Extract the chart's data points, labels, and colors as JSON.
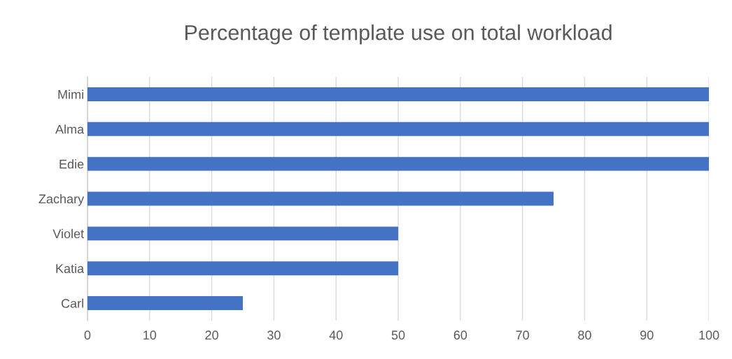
{
  "chart_data": {
    "type": "bar",
    "orientation": "horizontal",
    "title": "Percentage of template use on total workload",
    "categories": [
      "Mimi",
      "Alma",
      "Edie",
      "Zachary",
      "Violet",
      "Katia",
      "Carl"
    ],
    "values": [
      100,
      100,
      100,
      75,
      50,
      50,
      25
    ],
    "color": "#4472c4",
    "xlim": [
      0,
      100
    ],
    "xticks": [
      0,
      10,
      20,
      30,
      40,
      50,
      60,
      70,
      80,
      90,
      100
    ],
    "grid": "x",
    "legend": false
  }
}
